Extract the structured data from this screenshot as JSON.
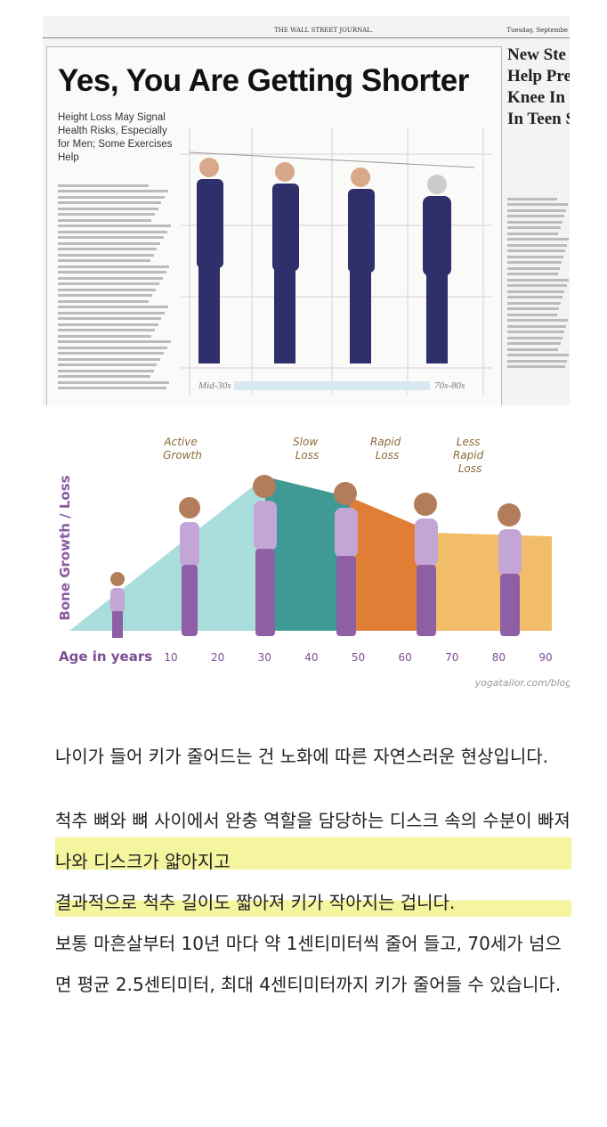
{
  "newspaper": {
    "masthead": "THE WALL STREET JOURNAL.",
    "date": "Tuesday, Septembe",
    "headline": "Yes, You Are Getting Shorter",
    "subhead": "Height Loss May Signal Health Risks, Especially for Men; Some Exercises Help",
    "side_headline": [
      "New Ste",
      "Help Pre",
      "Knee In",
      "In Teen S"
    ],
    "figure_labels": [
      "Mid-30s",
      "70s-80s"
    ]
  },
  "illustration": {
    "y_label": "Bone Growth / Loss",
    "x_label": "Age in years",
    "phases": [
      "Active Growth",
      "Slow Loss",
      "Rapid Loss",
      "Less Rapid Loss"
    ],
    "ages": [
      10,
      20,
      30,
      40,
      50,
      60,
      70,
      80,
      90
    ],
    "credit": "yogatailor.com/blog"
  },
  "article": {
    "intro": "나이가 들어 키가 줄어드는 건 노화에 따른 자연스러운 현상입니다.",
    "highlighted_lines": [
      "척추 뼈와 뼈 사이에서 완충 역할을 담당하는 디스크 속의 수분이 빠져 나와 디스크가 얇아지고",
      "결과적으로 척추 길이도 짧아져 키가 작아지는 겁니다."
    ],
    "body": "보통 마흔살부터 10년 마다 약 1센티미터씩 줄어 들고, 70세가 넘으면 평균 2.5센티미터, 최대 4센티미터까지 키가 줄어들 수 있습니다."
  }
}
